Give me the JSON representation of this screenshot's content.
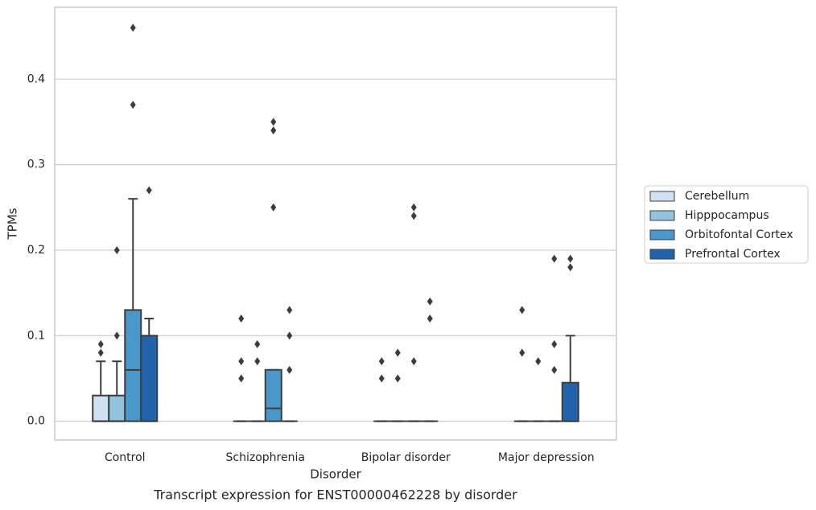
{
  "chart_data": {
    "type": "box",
    "title": "Transcript expression for ENST00000462228 by disorder",
    "xlabel": "Disorder",
    "ylabel": "TPMs",
    "categories": [
      "Control",
      "Schizophrenia",
      "Bipolar disorder",
      "Major depression"
    ],
    "ylim": [
      -0.022,
      0.484
    ],
    "yticks": [
      {
        "value": 0,
        "label": "0.0"
      },
      0.1,
      0.2,
      0.3,
      0.4
    ],
    "grid": true,
    "legend": "right",
    "series": [
      {
        "name": "Cerebellum",
        "color": "#cfe1f2",
        "boxes": [
          {
            "whislo": 0,
            "q1": 0,
            "med": 0,
            "q3": 0.03,
            "whishi": 0.07,
            "fliers": [
              0.08,
              0.09
            ]
          },
          {
            "whislo": 0,
            "q1": 0,
            "med": 0,
            "q3": 0,
            "whishi": 0,
            "fliers": [
              0.05,
              0.07,
              0.12
            ]
          },
          {
            "whislo": 0,
            "q1": 0,
            "med": 0,
            "q3": 0,
            "whishi": 0,
            "fliers": [
              0.05,
              0.07
            ]
          },
          {
            "whislo": 0,
            "q1": 0,
            "med": 0,
            "q3": 0,
            "whishi": 0,
            "fliers": [
              0.08,
              0.13
            ]
          }
        ]
      },
      {
        "name": "Hipppocampus",
        "color": "#93c4de",
        "boxes": [
          {
            "whislo": 0,
            "q1": 0,
            "med": 0,
            "q3": 0.03,
            "whishi": 0.07,
            "fliers": [
              0.1,
              0.2
            ]
          },
          {
            "whislo": 0,
            "q1": 0,
            "med": 0,
            "q3": 0,
            "whishi": 0,
            "fliers": [
              0.07,
              0.09
            ]
          },
          {
            "whislo": 0,
            "q1": 0,
            "med": 0,
            "q3": 0,
            "whishi": 0,
            "fliers": [
              0.05,
              0.08
            ]
          },
          {
            "whislo": 0,
            "q1": 0,
            "med": 0,
            "q3": 0,
            "whishi": 0,
            "fliers": [
              0.07
            ]
          }
        ]
      },
      {
        "name": "Orbitofontal Cortex",
        "color": "#4a98c9",
        "boxes": [
          {
            "whislo": 0,
            "q1": 0,
            "med": 0.06,
            "q3": 0.13,
            "whishi": 0.26,
            "fliers": [
              0.37,
              0.46
            ]
          },
          {
            "whislo": 0,
            "q1": 0,
            "med": 0.015,
            "q3": 0.06,
            "whishi": 0.06,
            "fliers": [
              0.25,
              0.34,
              0.35
            ]
          },
          {
            "whislo": 0,
            "q1": 0,
            "med": 0,
            "q3": 0,
            "whishi": 0,
            "fliers": [
              0.07,
              0.24,
              0.25
            ]
          },
          {
            "whislo": 0,
            "q1": 0,
            "med": 0,
            "q3": 0,
            "whishi": 0,
            "fliers": [
              0.06,
              0.09,
              0.19
            ]
          }
        ]
      },
      {
        "name": "Prefrontal Cortex",
        "color": "#2164ab",
        "boxes": [
          {
            "whislo": 0,
            "q1": 0,
            "med": 0,
            "q3": 0.1,
            "whishi": 0.12,
            "fliers": [
              0.27
            ]
          },
          {
            "whislo": 0,
            "q1": 0,
            "med": 0,
            "q3": 0,
            "whishi": 0,
            "fliers": [
              0.06,
              0.1,
              0.13
            ]
          },
          {
            "whislo": 0,
            "q1": 0,
            "med": 0,
            "q3": 0,
            "whishi": 0,
            "fliers": [
              0.12,
              0.14
            ]
          },
          {
            "whislo": 0,
            "q1": 0,
            "med": 0,
            "q3": 0.045,
            "whishi": 0.1,
            "fliers": [
              0.18,
              0.19
            ]
          }
        ]
      }
    ]
  }
}
